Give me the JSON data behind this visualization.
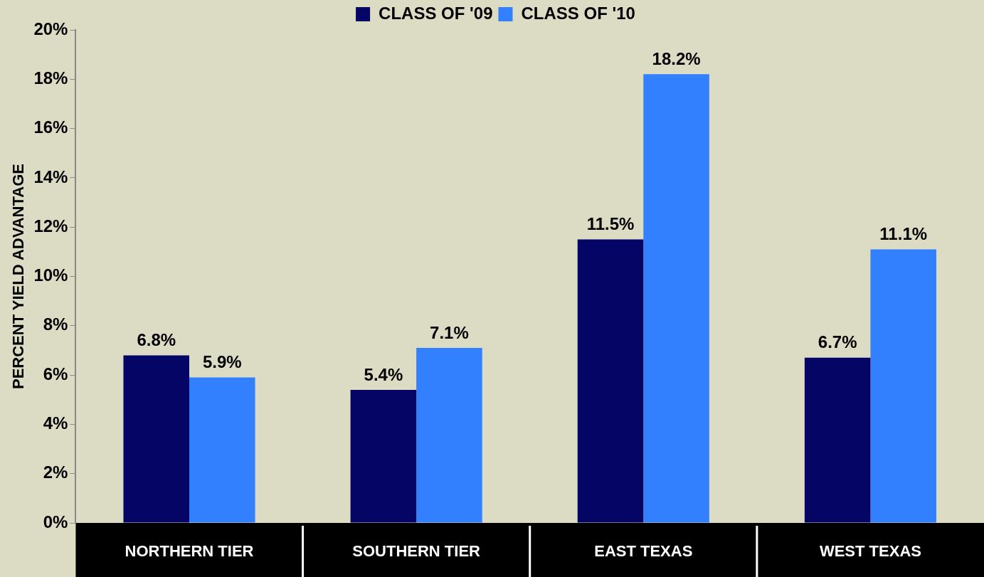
{
  "chart_data": {
    "type": "bar",
    "ylabel": "PERCENT YIELD ADVANTAGE",
    "categories": [
      "NORTHERN TIER",
      "SOUTHERN TIER",
      "EAST TEXAS",
      "WEST TEXAS"
    ],
    "series": [
      {
        "name": "CLASS OF '09",
        "color": "#050566",
        "values": [
          6.8,
          5.4,
          11.5,
          6.7
        ],
        "value_labels": [
          "6.8%",
          "5.4%",
          "11.5%",
          "6.7%"
        ]
      },
      {
        "name": "CLASS OF '10",
        "color": "#3380ff",
        "values": [
          5.9,
          7.1,
          18.2,
          11.1
        ],
        "value_labels": [
          "5.9%",
          "7.1%",
          "18.2%",
          "11.1%"
        ]
      }
    ],
    "ylim": [
      0,
      20
    ],
    "yticks": [
      {
        "value": 0,
        "label": "0%"
      },
      {
        "value": 2,
        "label": "2%"
      },
      {
        "value": 4,
        "label": "4%"
      },
      {
        "value": 6,
        "label": "6%"
      },
      {
        "value": 8,
        "label": "8%"
      },
      {
        "value": 10,
        "label": "10%"
      },
      {
        "value": 12,
        "label": "12%"
      },
      {
        "value": 14,
        "label": "14%"
      },
      {
        "value": 16,
        "label": "16%"
      },
      {
        "value": 18,
        "label": "18%"
      },
      {
        "value": 20,
        "label": "20%"
      }
    ],
    "grid": false,
    "legend": "top"
  }
}
